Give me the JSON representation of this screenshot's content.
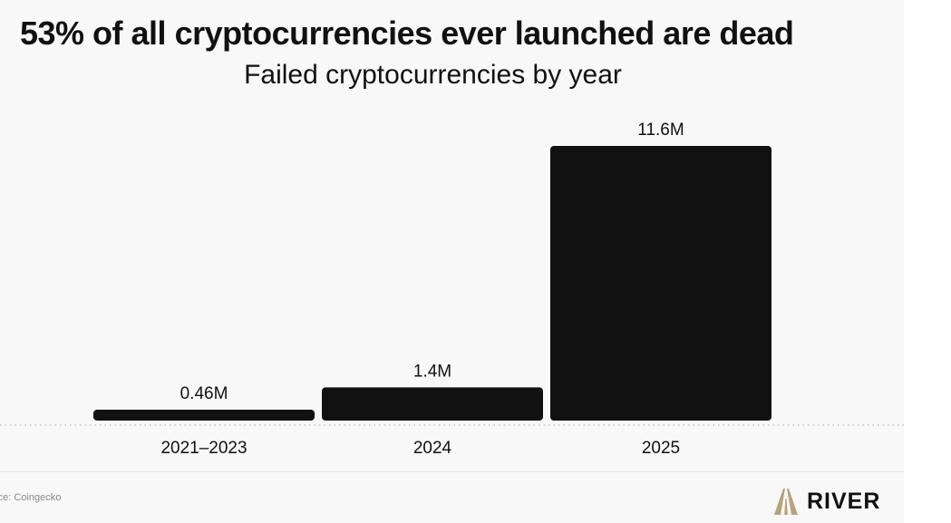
{
  "chart_data": {
    "type": "bar",
    "title": "53% of all cryptocurrencies ever launched are dead",
    "subtitle": "Failed cryptocurrencies by year",
    "categories": [
      "2021–2023",
      "2024",
      "2025"
    ],
    "values": [
      0.46,
      1.4,
      11.6
    ],
    "value_labels": [
      "0.46M",
      "1.4M",
      "11.6M"
    ],
    "unit": "M",
    "ylim": [
      0,
      11.6
    ],
    "grid": false,
    "legend": "none",
    "bar_color": "#111111",
    "baseline_style": "dotted"
  },
  "footer": {
    "source": "rce: Coingecko",
    "brand": "RIVER",
    "brand_color": "#b8a27a",
    "logo_icon": "river-road-logo-icon"
  }
}
